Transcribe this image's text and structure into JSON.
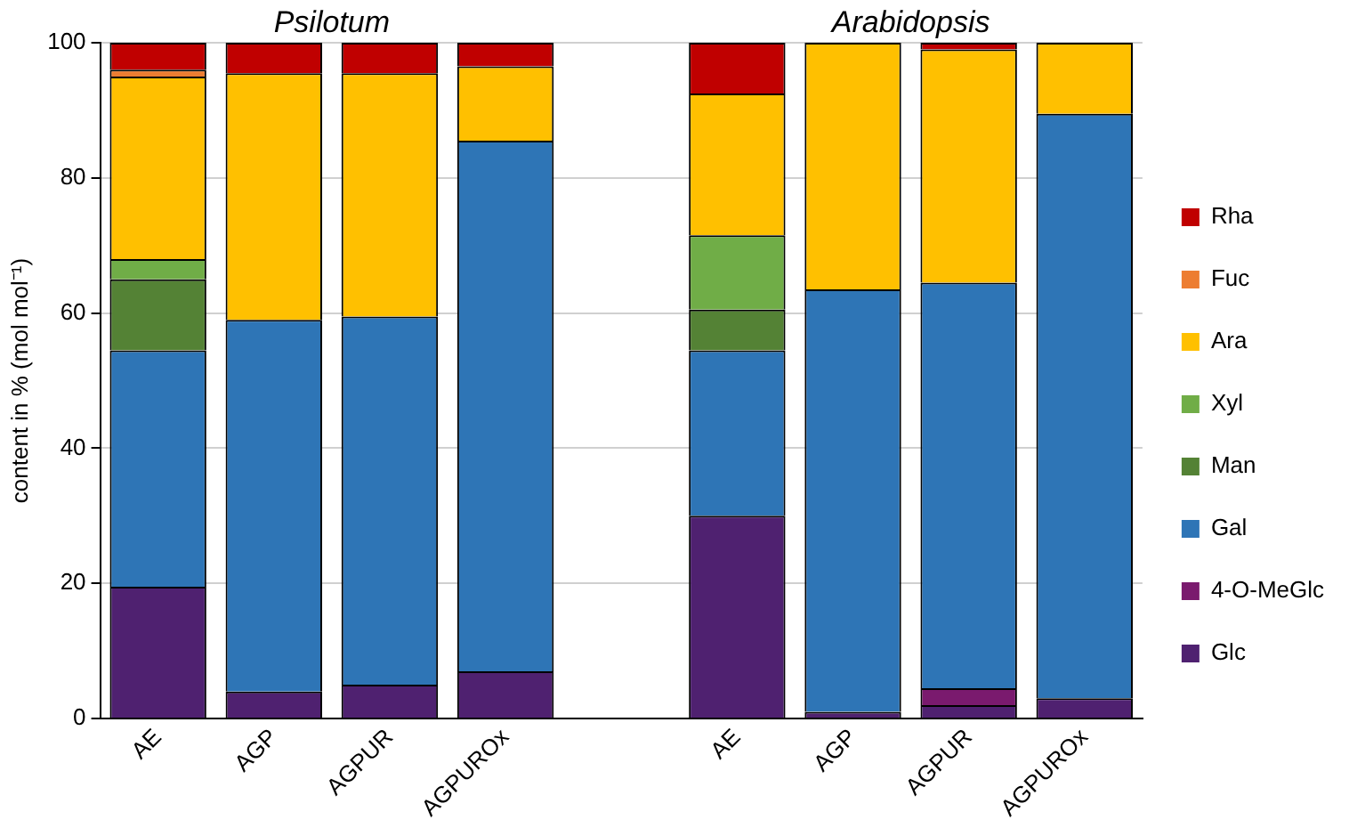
{
  "chart_data": {
    "type": "bar",
    "stacked": true,
    "ylabel": "content in % (mol mol⁻¹)",
    "categories": [
      "AE",
      "AGP",
      "AGPUR",
      "AGPUROx",
      null,
      "AE",
      "AGP",
      "AGPUR",
      "AGPUROx"
    ],
    "annotations": [
      "Psilotum",
      "Arabidopsis"
    ],
    "ylim": [
      0,
      100
    ],
    "yticks": [
      0,
      20,
      40,
      60,
      80,
      100
    ],
    "grid": "y",
    "legend": "right",
    "series": [
      {
        "name": "Glc",
        "color": "#4f2170",
        "values": [
          19.5,
          4,
          5,
          7,
          null,
          30,
          1,
          2,
          3
        ]
      },
      {
        "name": "4-O-MeGlc",
        "color": "#7a1a6e",
        "values": [
          0,
          0,
          0,
          0,
          null,
          0,
          0,
          2.5,
          0
        ]
      },
      {
        "name": "Gal",
        "color": "#2e75b6",
        "values": [
          35,
          55,
          54.5,
          78.5,
          null,
          24.5,
          62.5,
          60,
          86.5
        ]
      },
      {
        "name": "Man",
        "color": "#548235",
        "values": [
          10.5,
          0,
          0,
          0,
          null,
          6,
          0,
          0,
          0
        ]
      },
      {
        "name": "Xyl",
        "color": "#70ad47",
        "values": [
          3,
          0,
          0,
          0,
          null,
          11,
          0,
          0,
          0
        ]
      },
      {
        "name": "Ara",
        "color": "#ffc000",
        "values": [
          27,
          36.5,
          36,
          11,
          null,
          21,
          36.5,
          34.5,
          10.5
        ]
      },
      {
        "name": "Fuc",
        "color": "#ed7d31",
        "values": [
          1,
          0,
          0,
          0,
          null,
          0,
          0,
          0,
          0
        ]
      },
      {
        "name": "Rha",
        "color": "#c00000",
        "values": [
          4,
          4.5,
          4.5,
          3.5,
          null,
          7.5,
          0,
          1,
          0
        ]
      }
    ]
  }
}
